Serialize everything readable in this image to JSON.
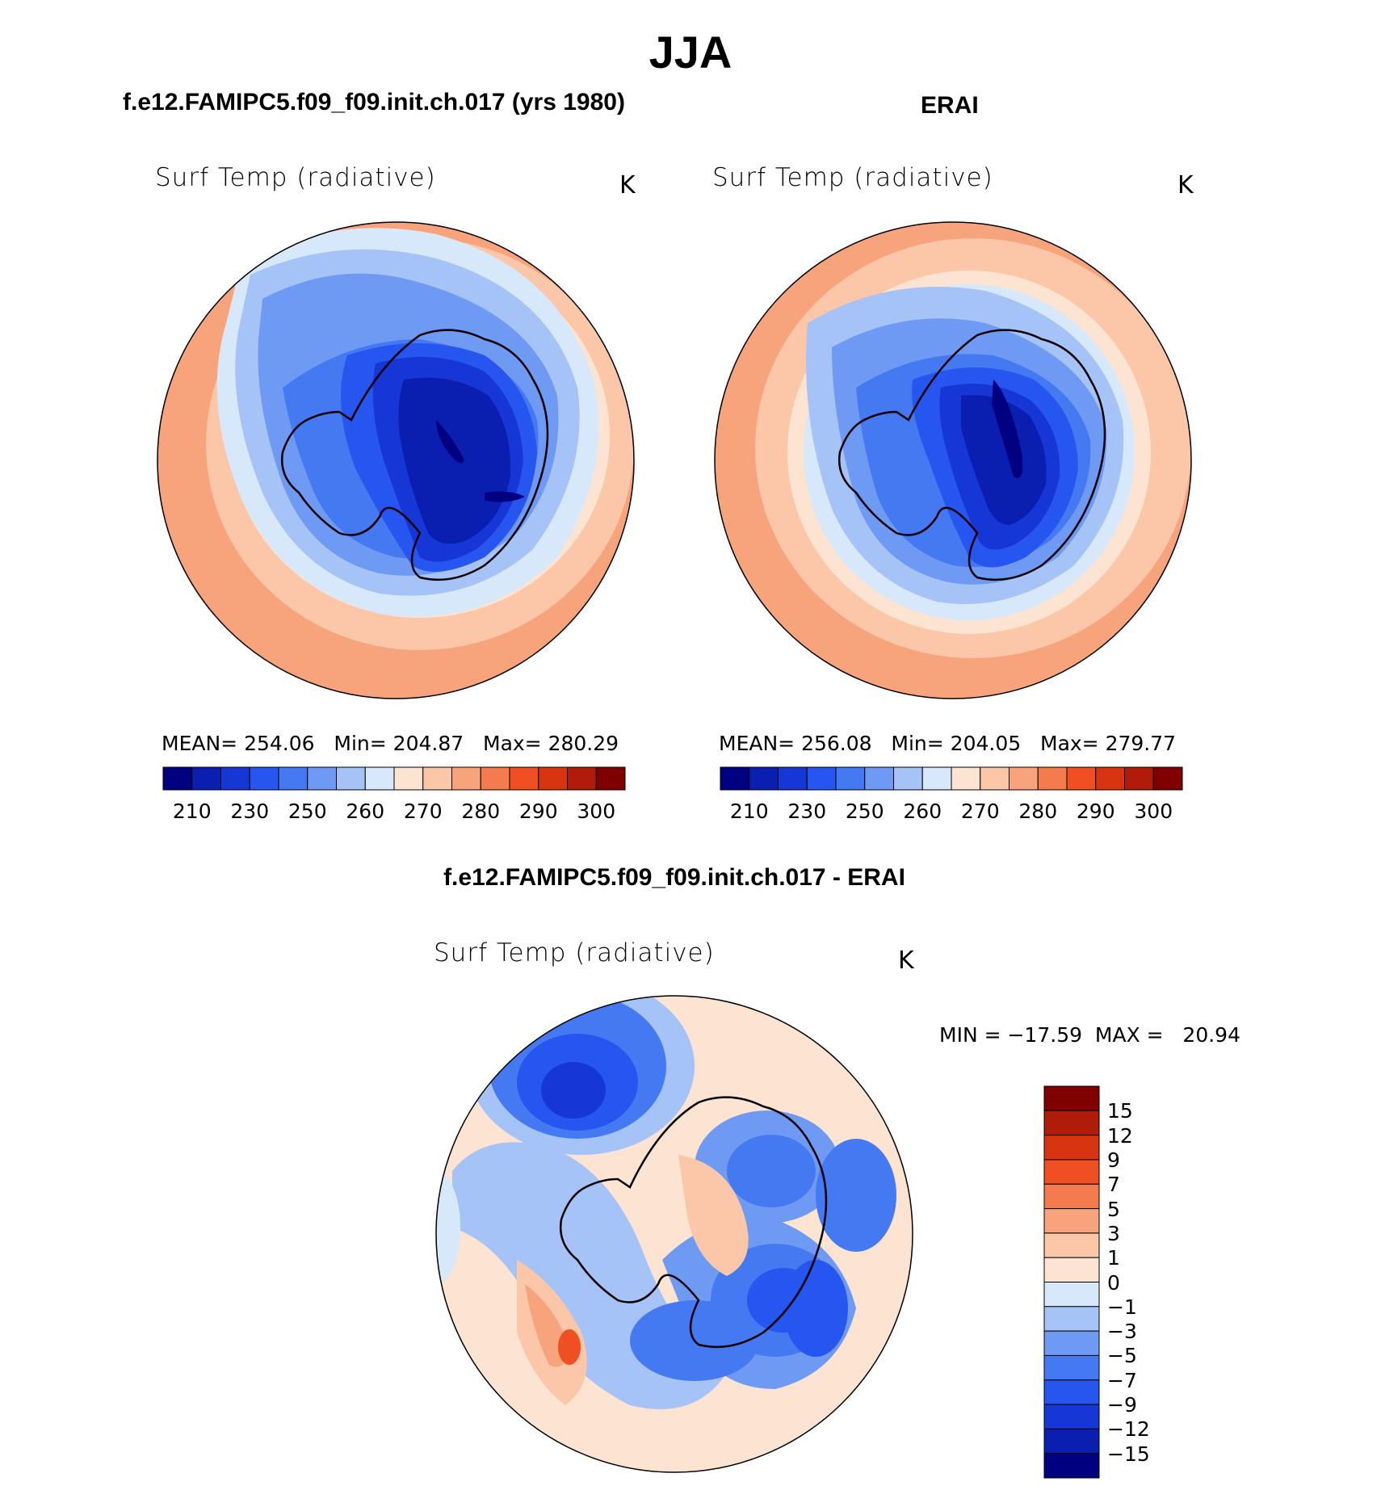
{
  "title": "JJA",
  "colors": {
    "abs_scale": [
      "#000080",
      "#0a1fb0",
      "#1637d6",
      "#2755f0",
      "#4479f2",
      "#6f9af3",
      "#a6c3f7",
      "#d8e8fb",
      "#fde4d2",
      "#fbc7a8",
      "#f7a37c",
      "#f47b4e",
      "#f04f24",
      "#d93412",
      "#b01c09",
      "#800000"
    ],
    "diff_scale": [
      "#000080",
      "#0a1fb0",
      "#1637d6",
      "#2755f0",
      "#4479f2",
      "#6f9af3",
      "#a6c3f7",
      "#d8e8fb",
      "#fde4d2",
      "#fbc7a8",
      "#f7a37c",
      "#f47b4e",
      "#f04f24",
      "#d93412",
      "#b01c09",
      "#800000"
    ],
    "coast": "#000000"
  },
  "panels": [
    {
      "id": "model",
      "heading": "f.e12.FAMIPC5.f09_f09.init.ch.017 (yrs 1980)",
      "variable": "Surf Temp (radiative)",
      "units": "K",
      "stats": {
        "mean_label": "MEAN=",
        "mean": "254.06",
        "min_label": "Min=",
        "min": "204.87",
        "max_label": "Max=",
        "max": "280.29"
      },
      "colorbar_ticks": [
        "210",
        "230",
        "250",
        "260",
        "270",
        "280",
        "290",
        "300"
      ]
    },
    {
      "id": "obs",
      "heading": "ERAI",
      "variable": "Surf Temp (radiative)",
      "units": "K",
      "stats": {
        "mean_label": "MEAN=",
        "mean": "256.08",
        "min_label": "Min=",
        "min": "204.05",
        "max_label": "Max=",
        "max": "279.77"
      },
      "colorbar_ticks": [
        "210",
        "230",
        "250",
        "260",
        "270",
        "280",
        "290",
        "300"
      ]
    }
  ],
  "difference": {
    "heading": "f.e12.FAMIPC5.f09_f09.init.ch.017 - ERAI",
    "variable": "Surf Temp (radiative)",
    "units": "K",
    "stats_text": "MIN = −17.59  MAX =   20.94",
    "colorbar_ticks": [
      "15",
      "12",
      "9",
      "7",
      "5",
      "3",
      "1",
      "0",
      "−1",
      "−3",
      "−5",
      "−7",
      "−9",
      "−12",
      "−15"
    ]
  }
}
